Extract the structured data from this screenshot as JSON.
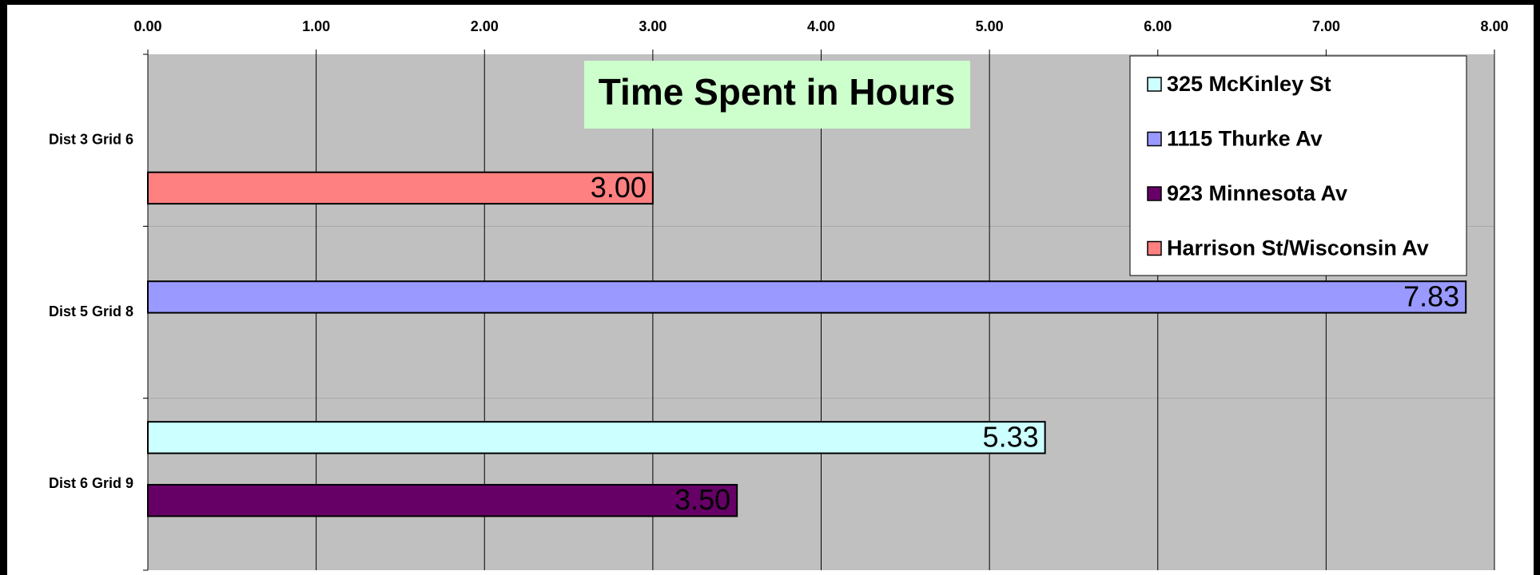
{
  "chart_data": {
    "type": "barh",
    "title": "Time Spent in Hours",
    "categories": [
      "Dist 3 Grid 6",
      "Dist 5 Grid 8",
      "Dist 6 Grid 9"
    ],
    "series": [
      {
        "name": "325 McKinley St",
        "color": "#ccffff",
        "values": [
          null,
          null,
          5.33
        ],
        "value_labels": [
          null,
          null,
          "5.33"
        ]
      },
      {
        "name": "1115 Thurke Av",
        "color": "#9999ff",
        "values": [
          null,
          7.83,
          null
        ],
        "value_labels": [
          null,
          "7.83",
          null
        ]
      },
      {
        "name": "923 Minnesota Av",
        "color": "#660066",
        "values": [
          null,
          null,
          3.5
        ],
        "value_labels": [
          null,
          null,
          "3.50"
        ]
      },
      {
        "name": "Harrison St/Wisconsin Av",
        "color": "#ff8080",
        "values": [
          3,
          null,
          null
        ],
        "value_labels": [
          "3.00",
          null,
          null
        ]
      }
    ],
    "xlim": [
      0,
      8
    ],
    "xticks": [
      {
        "value": 0,
        "label": "0.00"
      },
      {
        "value": 1,
        "label": "1.00"
      },
      {
        "value": 2,
        "label": "2.00"
      },
      {
        "value": 3,
        "label": "3.00"
      },
      {
        "value": 4,
        "label": "4.00"
      },
      {
        "value": 5,
        "label": "5.00"
      },
      {
        "value": 6,
        "label": "6.00"
      },
      {
        "value": 7,
        "label": "7.00"
      },
      {
        "value": 8,
        "label": "8.00"
      }
    ],
    "grid": true,
    "legend": "upper right"
  }
}
